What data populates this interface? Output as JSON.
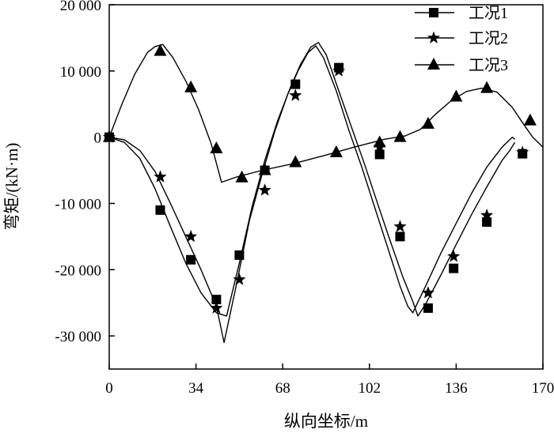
{
  "chart_data": {
    "type": "line",
    "title": "",
    "xlabel": "纵向坐标/m",
    "ylabel": "弯矩/(kN·m)",
    "xlim": [
      0,
      170
    ],
    "ylim": [
      -35000,
      20000
    ],
    "xticks": [
      0,
      34,
      68,
      102,
      136,
      170
    ],
    "xtick_labels": [
      "0",
      "34",
      "68",
      "102",
      "136",
      "170"
    ],
    "yticks": [
      20000,
      10000,
      0,
      -10000,
      -20000,
      -30000
    ],
    "ytick_labels": [
      "20 000",
      "10 000",
      "0",
      "-10 000",
      "-20 000",
      "-30 000"
    ],
    "legend_position": "top-right",
    "series": [
      {
        "name": "工况1",
        "marker": "square",
        "line": [
          [
            0,
            0
          ],
          [
            6,
            -800
          ],
          [
            12,
            -3200
          ],
          [
            18,
            -7800
          ],
          [
            24,
            -13500
          ],
          [
            30,
            -19000
          ],
          [
            36,
            -23500
          ],
          [
            42,
            -26500
          ],
          [
            46,
            -27000
          ],
          [
            51,
            -19000
          ],
          [
            56,
            -10500
          ],
          [
            61,
            -3500
          ],
          [
            66,
            2500
          ],
          [
            71,
            7500
          ],
          [
            75,
            11000
          ],
          [
            79,
            13600
          ],
          [
            82,
            14300
          ],
          [
            85,
            12500
          ],
          [
            90,
            7000
          ],
          [
            95,
            1500
          ],
          [
            100,
            -4000
          ],
          [
            105,
            -9800
          ],
          [
            110,
            -15500
          ],
          [
            115,
            -21000
          ],
          [
            119,
            -24800
          ],
          [
            121,
            -27000
          ],
          [
            124,
            -25200
          ],
          [
            130,
            -20800
          ],
          [
            136,
            -16200
          ],
          [
            142,
            -11700
          ],
          [
            148,
            -7500
          ],
          [
            154,
            -3500
          ],
          [
            157,
            -2000
          ],
          [
            159,
            -800
          ]
        ],
        "points": [
          [
            0,
            0
          ],
          [
            20,
            -11000
          ],
          [
            32,
            -18500
          ],
          [
            42,
            -24500
          ],
          [
            51,
            -17800
          ],
          [
            61,
            -5000
          ],
          [
            73,
            8000
          ],
          [
            90,
            10500
          ],
          [
            106,
            -2600
          ],
          [
            114,
            -15000
          ],
          [
            125,
            -25800
          ],
          [
            135,
            -19800
          ],
          [
            148,
            -12800
          ],
          [
            162,
            -2500
          ]
        ]
      },
      {
        "name": "工况2",
        "marker": "star",
        "line": [
          [
            0,
            0
          ],
          [
            6,
            -400
          ],
          [
            12,
            -2000
          ],
          [
            18,
            -5200
          ],
          [
            24,
            -10000
          ],
          [
            30,
            -15000
          ],
          [
            36,
            -20000
          ],
          [
            42,
            -25500
          ],
          [
            45,
            -31000
          ],
          [
            50,
            -22000
          ],
          [
            55,
            -12500
          ],
          [
            60,
            -5500
          ],
          [
            65,
            1000
          ],
          [
            70,
            6500
          ],
          [
            74,
            10000
          ],
          [
            78,
            12800
          ],
          [
            81,
            13800
          ],
          [
            84,
            12000
          ],
          [
            89,
            7000
          ],
          [
            94,
            1000
          ],
          [
            99,
            -4500
          ],
          [
            104,
            -10500
          ],
          [
            109,
            -16500
          ],
          [
            114,
            -22500
          ],
          [
            117,
            -25500
          ],
          [
            119,
            -26500
          ],
          [
            124,
            -22500
          ],
          [
            130,
            -17500
          ],
          [
            136,
            -13000
          ],
          [
            142,
            -8500
          ],
          [
            148,
            -4500
          ],
          [
            154,
            -1500
          ],
          [
            158,
            0
          ],
          [
            159,
            -300
          ]
        ],
        "points": [
          [
            0,
            0
          ],
          [
            20,
            -6000
          ],
          [
            32,
            -15000
          ],
          [
            42,
            -25800
          ],
          [
            51,
            -21500
          ],
          [
            61,
            -8000
          ],
          [
            73,
            6300
          ],
          [
            90,
            10000
          ],
          [
            106,
            -1500
          ],
          [
            114,
            -13500
          ],
          [
            125,
            -23500
          ],
          [
            135,
            -18000
          ],
          [
            148,
            -11800
          ],
          [
            162,
            -2300
          ]
        ]
      },
      {
        "name": "工况3",
        "marker": "triangle",
        "line": [
          [
            0,
            0
          ],
          [
            5,
            5000
          ],
          [
            10,
            9500
          ],
          [
            15,
            12800
          ],
          [
            18,
            13700
          ],
          [
            21,
            14000
          ],
          [
            25,
            12000
          ],
          [
            30,
            8500
          ],
          [
            35,
            4200
          ],
          [
            40,
            -1000
          ],
          [
            44,
            -6800
          ],
          [
            50,
            -6000
          ],
          [
            60,
            -5000
          ],
          [
            72,
            -4000
          ],
          [
            84,
            -2800
          ],
          [
            96,
            -1500
          ],
          [
            108,
            -300
          ],
          [
            116,
            200
          ],
          [
            122,
            1200
          ],
          [
            128,
            3500
          ],
          [
            134,
            5500
          ],
          [
            140,
            6900
          ],
          [
            146,
            7400
          ],
          [
            152,
            6800
          ],
          [
            158,
            4500
          ],
          [
            162,
            2200
          ],
          [
            166,
            0
          ],
          [
            170,
            -1500
          ]
        ],
        "points": [
          [
            0,
            0
          ],
          [
            20,
            13000
          ],
          [
            32,
            7500
          ],
          [
            42,
            -1700
          ],
          [
            52,
            -6100
          ],
          [
            61,
            -5000
          ],
          [
            73,
            -3800
          ],
          [
            89,
            -2300
          ],
          [
            106,
            -800
          ],
          [
            114,
            0
          ],
          [
            125,
            2000
          ],
          [
            136,
            6100
          ],
          [
            148,
            7400
          ],
          [
            165,
            2500
          ]
        ]
      }
    ]
  }
}
